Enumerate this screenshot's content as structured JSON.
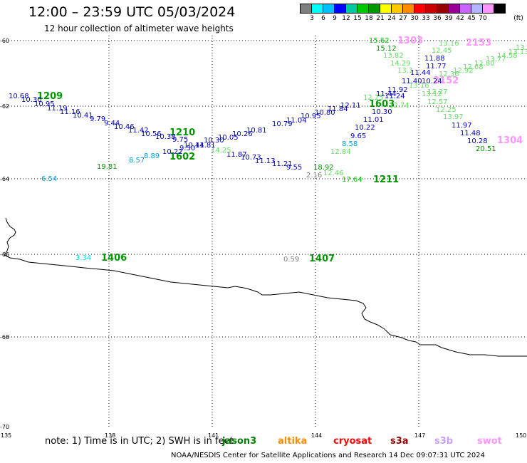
{
  "title": "12:00 – 23:59 UTC 05/03/2024",
  "subtitle": "12 hour collection of altimeter wave heights",
  "colorbar": {
    "colors": [
      "#7f7f7f",
      "#00ffff",
      "#00bfff",
      "#0000ff",
      "#00c8a0",
      "#00c800",
      "#009600",
      "#ffff00",
      "#ffc800",
      "#ff8c00",
      "#ff0000",
      "#c80000",
      "#960000",
      "#960096",
      "#c864ff",
      "#b4b4ff",
      "#ff96ff",
      "#000000"
    ],
    "ticks": [
      "3",
      "6",
      "9",
      "12",
      "15",
      "18",
      "21",
      "24",
      "27",
      "30",
      "33",
      "36",
      "39",
      "42",
      "45",
      "70"
    ],
    "unit": "(ft)"
  },
  "axes": {
    "lat_labels": [
      "-60",
      "-62",
      "-64",
      "-66",
      "-68",
      "-70"
    ],
    "lon_labels": [
      "135",
      "138",
      "141",
      "144",
      "147",
      "150"
    ]
  },
  "note": "note:  1) Time is in UTC; 2) SWH is in feet",
  "satellites": [
    {
      "name": "jason3",
      "color": "#007f00"
    },
    {
      "name": "altika",
      "color": "#ff8c00"
    },
    {
      "name": "cryosat",
      "color": "#ff0000"
    },
    {
      "name": "s3a",
      "color": "#960000"
    },
    {
      "name": "s3b",
      "color": "#c8a0ff"
    },
    {
      "name": "swot",
      "color": "#ff96ff"
    }
  ],
  "credit": "NOAA/NESDIS Center for Satellite Applications and Research    14 Dec 09:07:31 UTC 2024",
  "pass_labels": [
    {
      "text": "1209",
      "color": "#009600"
    },
    {
      "text": "1210",
      "color": "#009600"
    },
    {
      "text": "1602",
      "color": "#009600"
    },
    {
      "text": "1603",
      "color": "#009600"
    },
    {
      "text": "1211",
      "color": "#009600"
    },
    {
      "text": "1406",
      "color": "#009600"
    },
    {
      "text": "1407",
      "color": "#009600"
    },
    {
      "text": "1303",
      "color": "#ff96ff"
    },
    {
      "text": "2153",
      "color": "#ff96ff"
    },
    {
      "text": "2152",
      "color": "#ff96ff"
    },
    {
      "text": "1304",
      "color": "#ff96ff"
    }
  ],
  "swh_labels": [
    {
      "text": "10.68",
      "color": "#0000c8"
    },
    {
      "text": "10.30",
      "color": "#0000c8"
    },
    {
      "text": "10.95",
      "color": "#0000c8"
    },
    {
      "text": "11.19",
      "color": "#0000c8"
    },
    {
      "text": "11.16",
      "color": "#0000c8"
    },
    {
      "text": "10.41",
      "color": "#0000c8"
    },
    {
      "text": "9.79",
      "color": "#0000c8"
    },
    {
      "text": "9.44",
      "color": "#0000c8"
    },
    {
      "text": "10.46",
      "color": "#0000c8"
    },
    {
      "text": "11.42",
      "color": "#0000c8"
    },
    {
      "text": "10.56",
      "color": "#0000c8"
    },
    {
      "text": "10.38",
      "color": "#0000c8"
    },
    {
      "text": "9.75",
      "color": "#0000c8"
    },
    {
      "text": "10.44",
      "color": "#0000c8"
    },
    {
      "text": "10.30",
      "color": "#0000c8"
    },
    {
      "text": "10.05",
      "color": "#0000c8"
    },
    {
      "text": "10.26",
      "color": "#0000c8"
    },
    {
      "text": "10.81",
      "color": "#0000c8"
    },
    {
      "text": "10.79",
      "color": "#0000c8"
    },
    {
      "text": "11.04",
      "color": "#0000c8"
    },
    {
      "text": "10.95",
      "color": "#0000c8"
    },
    {
      "text": "10.80",
      "color": "#0000c8"
    },
    {
      "text": "11.84",
      "color": "#0000c8"
    },
    {
      "text": "12.11",
      "color": "#0000c8"
    },
    {
      "text": "11.44",
      "color": "#0000c8"
    },
    {
      "text": "11.24",
      "color": "#0000c8"
    },
    {
      "text": "11.92",
      "color": "#0000c8"
    },
    {
      "text": "10.22",
      "color": "#0000c8"
    },
    {
      "text": "9.50",
      "color": "#0000c8"
    },
    {
      "text": "11.81",
      "color": "#0000c8"
    },
    {
      "text": "11.87",
      "color": "#0000c8"
    },
    {
      "text": "10.73",
      "color": "#0000c8"
    },
    {
      "text": "11.13",
      "color": "#0000c8"
    },
    {
      "text": "11.21",
      "color": "#0000c8"
    },
    {
      "text": "9.55",
      "color": "#0000c8"
    },
    {
      "text": "10.30",
      "color": "#0000c8"
    },
    {
      "text": "11.01",
      "color": "#0000c8"
    },
    {
      "text": "10.22",
      "color": "#0000c8"
    },
    {
      "text": "9.65",
      "color": "#0000c8"
    },
    {
      "text": "11.88",
      "color": "#0000c8"
    },
    {
      "text": "11.77",
      "color": "#0000c8"
    },
    {
      "text": "11.44",
      "color": "#0000c8"
    },
    {
      "text": "11.40",
      "color": "#0000c8"
    },
    {
      "text": "10.24",
      "color": "#0000c8"
    },
    {
      "text": "11.97",
      "color": "#0000c8"
    },
    {
      "text": "11.48",
      "color": "#0000c8"
    },
    {
      "text": "10.28",
      "color": "#0000c8"
    },
    {
      "text": "8.57",
      "color": "#00a0dc"
    },
    {
      "text": "8.89",
      "color": "#00a0dc"
    },
    {
      "text": "8.58",
      "color": "#00a0dc"
    },
    {
      "text": "6.54",
      "color": "#00a0dc"
    },
    {
      "text": "3.34",
      "color": "#00dcdc"
    },
    {
      "text": "0.59",
      "color": "#7f7f7f"
    },
    {
      "text": "2.16",
      "color": "#7f7f7f"
    },
    {
      "text": "19.81",
      "color": "#009600"
    },
    {
      "text": "18.92",
      "color": "#009600"
    },
    {
      "text": "17.64",
      "color": "#00c800"
    },
    {
      "text": "20.51",
      "color": "#009600"
    },
    {
      "text": "15.62",
      "color": "#00c800"
    },
    {
      "text": "15.12",
      "color": "#009600"
    },
    {
      "text": "13.82",
      "color": "#64dc64"
    },
    {
      "text": "14.29",
      "color": "#64dc64"
    },
    {
      "text": "13.16",
      "color": "#64dc64"
    },
    {
      "text": "12.45",
      "color": "#64dc64"
    },
    {
      "text": "12.36",
      "color": "#64dc64"
    },
    {
      "text": "12.92",
      "color": "#64dc64"
    },
    {
      "text": "12.68",
      "color": "#64dc64"
    },
    {
      "text": "12.80",
      "color": "#64dc64"
    },
    {
      "text": "13.77",
      "color": "#64dc64"
    },
    {
      "text": "14.58",
      "color": "#64dc64"
    },
    {
      "text": "13.13",
      "color": "#64dc64"
    },
    {
      "text": "13.12",
      "color": "#64dc64"
    },
    {
      "text": "12.57",
      "color": "#64dc64"
    },
    {
      "text": "12.25",
      "color": "#64dc64"
    },
    {
      "text": "13.97",
      "color": "#64dc64"
    },
    {
      "text": "12.84",
      "color": "#64dc64"
    },
    {
      "text": "12.25",
      "color": "#64dc64"
    },
    {
      "text": "12.46",
      "color": "#64dc64"
    },
    {
      "text": "14.25",
      "color": "#64dc64"
    },
    {
      "text": "13.1",
      "color": "#64dc64"
    },
    {
      "text": "13.14",
      "color": "#64dc64"
    },
    {
      "text": "13.16",
      "color": "#64dc64"
    },
    {
      "text": "12.27",
      "color": "#64dc64"
    },
    {
      "text": "12.74",
      "color": "#64dc64"
    },
    {
      "text": "12.18",
      "color": "#64dc64"
    }
  ]
}
